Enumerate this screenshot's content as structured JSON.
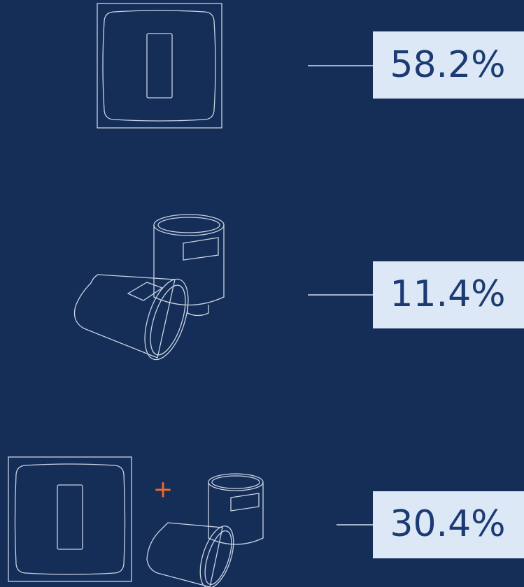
{
  "items": [
    {
      "value": "58.2%"
    },
    {
      "value": "11.4%"
    },
    {
      "value": "30.4%"
    }
  ],
  "plus": "+"
}
